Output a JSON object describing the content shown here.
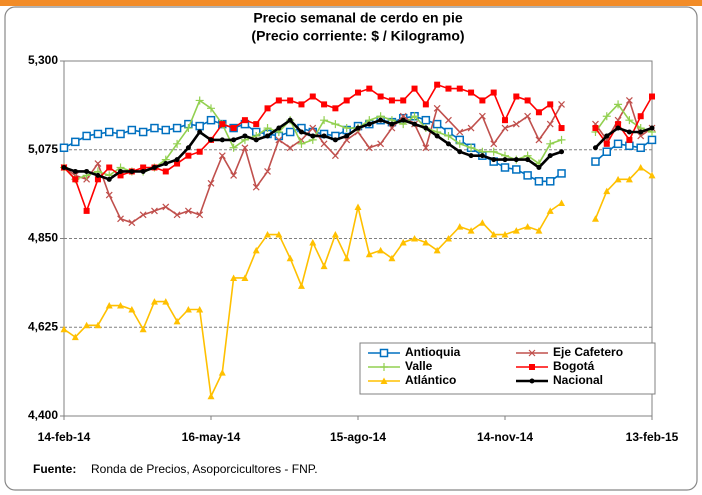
{
  "chart_data": {
    "type": "line",
    "title": "Precio semanal de cerdo en pie",
    "subtitle": "(Precio corriente: $ / Kilogramo)",
    "categories": [
      "14-feb-14",
      null,
      null,
      null,
      null,
      null,
      null,
      null,
      null,
      null,
      null,
      null,
      null,
      "16-may-14",
      null,
      null,
      null,
      null,
      null,
      null,
      null,
      null,
      null,
      null,
      null,
      null,
      "15-ago-14",
      null,
      null,
      null,
      null,
      null,
      null,
      null,
      null,
      null,
      null,
      null,
      null,
      "14-nov-14",
      null,
      null,
      null,
      null,
      null,
      null,
      null,
      null,
      null,
      null,
      null,
      null,
      "13-feb-15"
    ],
    "ylim": [
      4400,
      5300
    ],
    "yticks": [
      {
        "value": 4400,
        "label": "4,400"
      },
      {
        "value": 4625,
        "label": "4,625"
      },
      {
        "value": 4850,
        "label": "4,850"
      },
      {
        "value": 5075,
        "label": "5,075"
      },
      {
        "value": 5300,
        "label": "5,300"
      }
    ],
    "grid": true,
    "legend": "bottom",
    "series": [
      {
        "name": "Antioquia",
        "color": "#0070c0",
        "marker": "square-open",
        "values": [
          5080,
          5095,
          5110,
          5115,
          5120,
          5115,
          5125,
          5120,
          5130,
          5125,
          5130,
          5140,
          5135,
          5150,
          5140,
          5130,
          5140,
          5120,
          5115,
          5110,
          5120,
          5130,
          5120,
          5115,
          5110,
          5125,
          5135,
          5140,
          5150,
          5145,
          5155,
          5160,
          5150,
          5140,
          5120,
          5100,
          5080,
          5060,
          5045,
          5030,
          5025,
          5010,
          4995,
          4995,
          5015,
          null,
          null,
          5045,
          5070,
          5090,
          5085,
          5080,
          5100
        ]
      },
      {
        "name": "Eje Cafetero",
        "color": "#c0504d",
        "marker": "x",
        "values": [
          5030,
          5010,
          5000,
          5040,
          4960,
          4900,
          4890,
          4910,
          4920,
          4930,
          4910,
          4920,
          4910,
          4990,
          5060,
          5010,
          5080,
          4980,
          5020,
          5100,
          5080,
          5100,
          5130,
          5090,
          5060,
          5100,
          5120,
          5080,
          5090,
          5130,
          5160,
          5140,
          5080,
          5180,
          5150,
          5120,
          5130,
          5160,
          5090,
          5130,
          5140,
          5160,
          5100,
          5140,
          5190,
          null,
          null,
          5140,
          5100,
          5150,
          5200,
          5110,
          5130
        ]
      },
      {
        "name": "Valle",
        "color": "#92d050",
        "marker": "plus",
        "values": [
          5030,
          5000,
          5010,
          5020,
          5010,
          5030,
          5020,
          5020,
          5030,
          5050,
          5090,
          5130,
          5200,
          5180,
          5140,
          5080,
          5100,
          5110,
          5130,
          5120,
          5150,
          5090,
          5100,
          5150,
          5140,
          5130,
          5130,
          5150,
          5160,
          5150,
          5140,
          5160,
          5130,
          5120,
          5110,
          5090,
          5080,
          5070,
          5070,
          5060,
          5050,
          5060,
          5040,
          5090,
          5100,
          null,
          null,
          5120,
          5160,
          5190,
          5150,
          5130,
          5120
        ]
      },
      {
        "name": "Bogotá",
        "color": "#ff0000",
        "marker": "square",
        "values": [
          5030,
          5000,
          4920,
          5000,
          5030,
          5010,
          5020,
          5030,
          5030,
          5020,
          5040,
          5060,
          5070,
          5100,
          5140,
          5130,
          5150,
          5140,
          5180,
          5200,
          5200,
          5190,
          5210,
          5190,
          5180,
          5200,
          5220,
          5230,
          5210,
          5200,
          5200,
          5230,
          5190,
          5240,
          5230,
          5230,
          5220,
          5200,
          5220,
          5150,
          5210,
          5200,
          5170,
          5190,
          5130,
          null,
          null,
          5130,
          5090,
          5140,
          5100,
          5160,
          5210
        ]
      },
      {
        "name": "Atlántico",
        "color": "#ffc000",
        "marker": "triangle",
        "values": [
          4620,
          4600,
          4630,
          4630,
          4680,
          4680,
          4670,
          4620,
          4690,
          4690,
          4640,
          4670,
          4670,
          4450,
          4510,
          4750,
          4750,
          4820,
          4860,
          4860,
          4800,
          4730,
          4840,
          4780,
          4860,
          4800,
          4930,
          4810,
          4820,
          4800,
          4840,
          4850,
          4840,
          4820,
          4850,
          4880,
          4870,
          4890,
          4860,
          4860,
          4870,
          4880,
          4870,
          4920,
          4940,
          null,
          null,
          4900,
          4970,
          5000,
          5000,
          5030,
          5010
        ]
      },
      {
        "name": "Nacional",
        "color": "#000000",
        "marker": "dot",
        "values": [
          5030,
          5020,
          5020,
          5010,
          5000,
          5020,
          5020,
          5020,
          5030,
          5040,
          5050,
          5080,
          5120,
          5100,
          5100,
          5100,
          5110,
          5100,
          5110,
          5130,
          5150,
          5120,
          5110,
          5110,
          5100,
          5110,
          5130,
          5140,
          5150,
          5140,
          5150,
          5140,
          5130,
          5110,
          5090,
          5070,
          5060,
          5060,
          5050,
          5050,
          5050,
          5050,
          5030,
          5060,
          5070,
          null,
          null,
          5080,
          5110,
          5130,
          5120,
          5120,
          5130
        ]
      }
    ],
    "source_label": "Fuente:",
    "source": "Ronda de Precios, Asoporcicultores - FNP."
  }
}
